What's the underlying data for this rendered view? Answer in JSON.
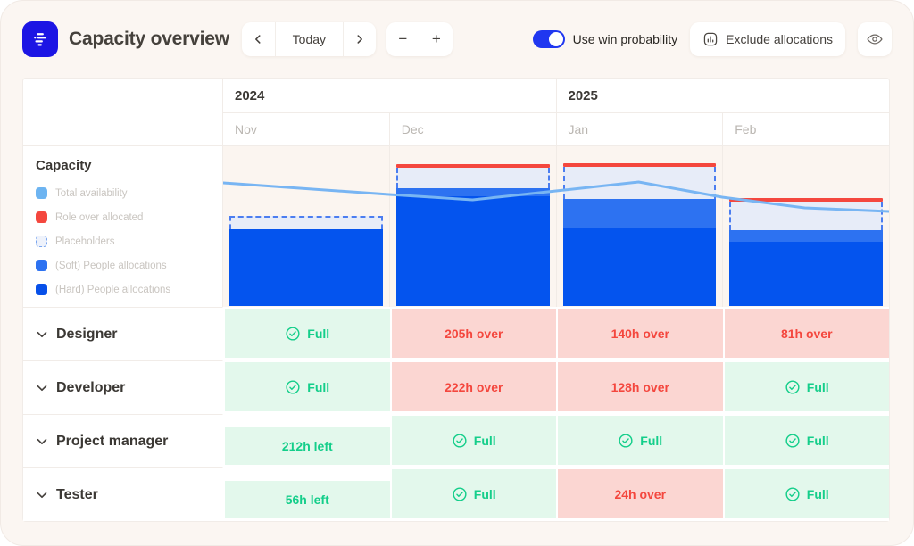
{
  "header": {
    "title": "Capacity overview",
    "nav": {
      "today": "Today"
    },
    "zoom": {
      "minus": "−",
      "plus": "+"
    },
    "toggle_label": "Use win probability",
    "toggle_on": true,
    "exclude_button": "Exclude allocations"
  },
  "colors": {
    "brand_blue": "#1c15e4",
    "toggle_blue": "#2037f0",
    "availability_line": "#78b5f3",
    "over_allocated_red": "#f4473e",
    "placeholder_fill": "#e7ecf8",
    "placeholder_dash": "#4b7df0",
    "soft_allocation_blue": "#2d72f1",
    "hard_allocation_blue": "#0454ee",
    "cell_green_bg": "#e3f8ec",
    "cell_green_text": "#14ce8a",
    "cell_red_bg": "#fbd6d2",
    "cell_red_text": "#f4473e"
  },
  "legend": {
    "title": "Capacity",
    "items": [
      {
        "label": "Total availability",
        "type": "availability"
      },
      {
        "label": "Role over allocated",
        "type": "over"
      },
      {
        "label": "Placeholders",
        "type": "placeholder"
      },
      {
        "label": "(Soft) People allocations",
        "type": "soft"
      },
      {
        "label": "(Hard) People allocations",
        "type": "hard"
      }
    ]
  },
  "table": {
    "years": [
      {
        "label": "2024",
        "months": [
          "Nov",
          "Dec"
        ]
      },
      {
        "label": "2025",
        "months": [
          "Jan",
          "Feb"
        ]
      }
    ],
    "rows": [
      {
        "label": "Designer",
        "cells": [
          {
            "status": "full",
            "text": "Full"
          },
          {
            "status": "over",
            "text": "205h over"
          },
          {
            "status": "over",
            "text": "140h over"
          },
          {
            "status": "over",
            "text": "81h over"
          }
        ]
      },
      {
        "label": "Developer",
        "cells": [
          {
            "status": "full",
            "text": "Full"
          },
          {
            "status": "over",
            "text": "222h over"
          },
          {
            "status": "over",
            "text": "128h over"
          },
          {
            "status": "full",
            "text": "Full"
          }
        ]
      },
      {
        "label": "Project manager",
        "cells": [
          {
            "status": "left",
            "text": "212h left"
          },
          {
            "status": "full",
            "text": "Full"
          },
          {
            "status": "full",
            "text": "Full"
          },
          {
            "status": "full",
            "text": "Full"
          }
        ]
      },
      {
        "label": "Tester",
        "cells": [
          {
            "status": "left",
            "text": "56h left"
          },
          {
            "status": "full",
            "text": "Full"
          },
          {
            "status": "over",
            "text": "24h over"
          },
          {
            "status": "full",
            "text": "Full"
          }
        ]
      }
    ]
  },
  "chart_data": {
    "type": "stacked-bar-with-line",
    "categories": [
      "Nov",
      "Dec",
      "Jan",
      "Feb"
    ],
    "units": "relative pixels of 180px-tall plot area (no numeric axis shown)",
    "bars": [
      {
        "month": "Nov",
        "over_allocated": false,
        "placeholder_h": 15,
        "soft_h": 0,
        "hard_h": 86
      },
      {
        "month": "Dec",
        "over_allocated": true,
        "placeholder_h": 23,
        "soft_h": 9,
        "hard_h": 123
      },
      {
        "month": "Jan",
        "over_allocated": true,
        "placeholder_h": 36,
        "soft_h": 33,
        "hard_h": 87
      },
      {
        "month": "Feb",
        "over_allocated": true,
        "placeholder_h": 32,
        "soft_h": 13,
        "hard_h": 72
      }
    ],
    "over_line_h": 4,
    "availability_line_points": [
      [
        0,
        41
      ],
      [
        187,
        54
      ],
      [
        281,
        60
      ],
      [
        375,
        50
      ],
      [
        468,
        40
      ],
      [
        562,
        57
      ],
      [
        655,
        69
      ],
      [
        750,
        73
      ]
    ],
    "legend_entries": [
      "Total availability",
      "Role over allocated",
      "Placeholders",
      "(Soft) People allocations",
      "(Hard) People allocations"
    ]
  }
}
